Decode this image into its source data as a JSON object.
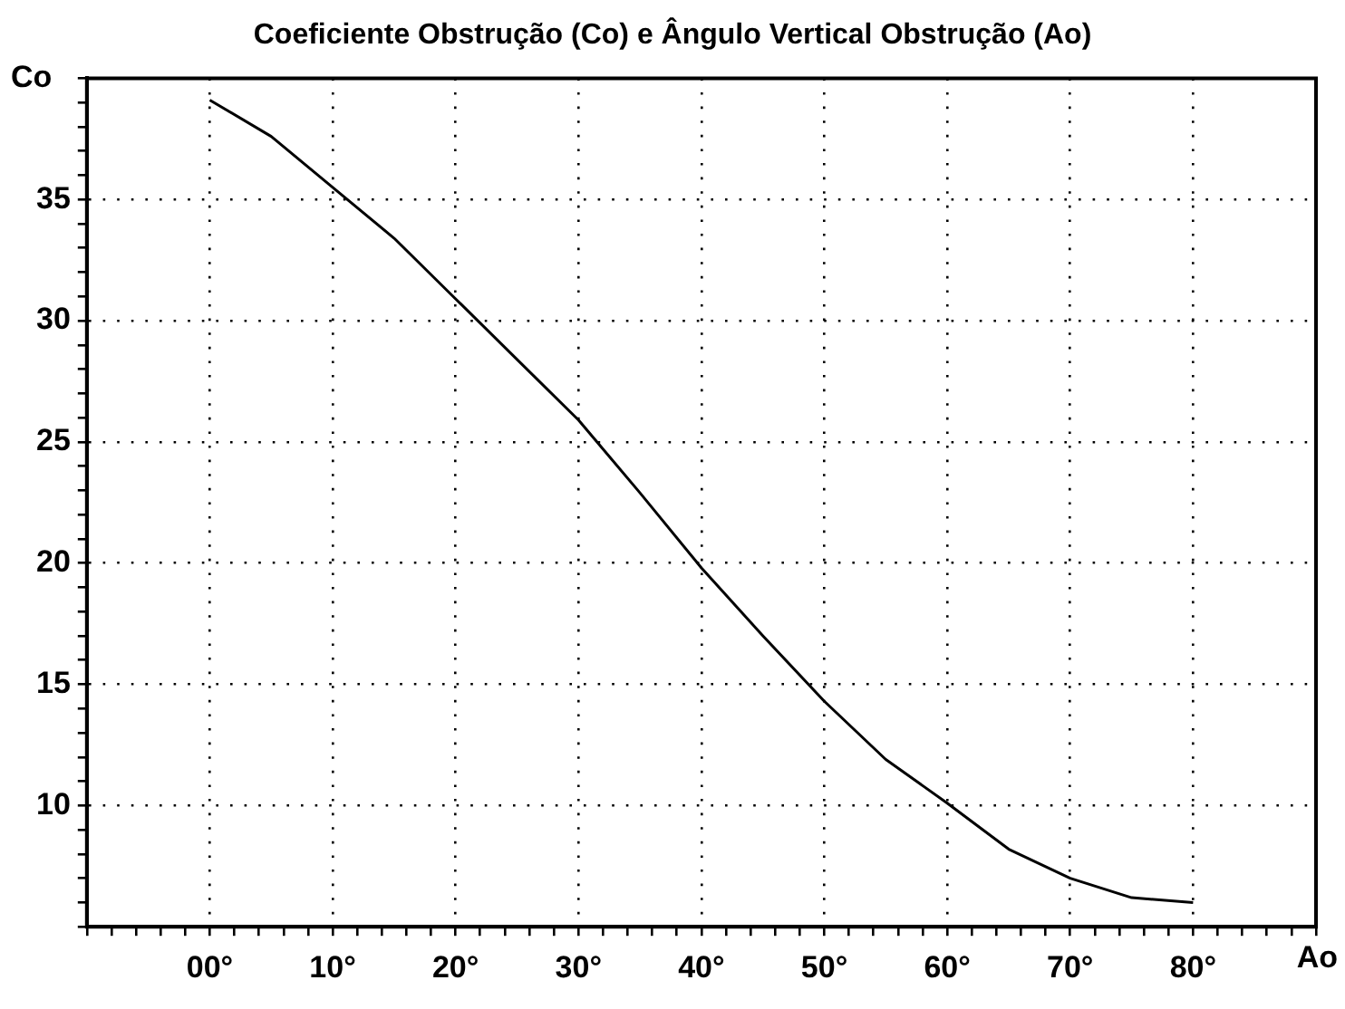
{
  "chart_data": {
    "type": "line",
    "title": "Coeficiente Obstrução (Co) e Ângulo Vertical Obstrução (Ao)",
    "xlabel": "Ao",
    "ylabel": "Co",
    "x": [
      0,
      5,
      10,
      15,
      20,
      25,
      30,
      35,
      40,
      45,
      50,
      55,
      60,
      65,
      70,
      75,
      80
    ],
    "series": [
      {
        "color": "#000000",
        "values": [
          39.1,
          37.6,
          35.5,
          33.4,
          30.9,
          28.4,
          25.9,
          22.9,
          19.8,
          17.0,
          14.3,
          11.9,
          10.1,
          8.2,
          7.0,
          6.2,
          6.0
        ]
      }
    ],
    "xlim": [
      -10,
      90
    ],
    "xticks": [
      {
        "value": -10,
        "label": null
      },
      {
        "value": -8,
        "label": null
      },
      {
        "value": -6,
        "label": null
      },
      {
        "value": -4,
        "label": null
      },
      {
        "value": -2,
        "label": null
      },
      {
        "value": 0,
        "label": "00°"
      },
      {
        "value": 2,
        "label": null
      },
      {
        "value": 4,
        "label": null
      },
      {
        "value": 6,
        "label": null
      },
      {
        "value": 8,
        "label": null
      },
      {
        "value": 10,
        "label": "10°"
      },
      {
        "value": 12,
        "label": null
      },
      {
        "value": 14,
        "label": null
      },
      {
        "value": 16,
        "label": null
      },
      {
        "value": 18,
        "label": null
      },
      {
        "value": 20,
        "label": "20°"
      },
      {
        "value": 22,
        "label": null
      },
      {
        "value": 24,
        "label": null
      },
      {
        "value": 26,
        "label": null
      },
      {
        "value": 28,
        "label": null
      },
      {
        "value": 30,
        "label": "30°"
      },
      {
        "value": 32,
        "label": null
      },
      {
        "value": 34,
        "label": null
      },
      {
        "value": 36,
        "label": null
      },
      {
        "value": 38,
        "label": null
      },
      {
        "value": 40,
        "label": "40°"
      },
      {
        "value": 42,
        "label": null
      },
      {
        "value": 44,
        "label": null
      },
      {
        "value": 46,
        "label": null
      },
      {
        "value": 48,
        "label": null
      },
      {
        "value": 50,
        "label": "50°"
      },
      {
        "value": 52,
        "label": null
      },
      {
        "value": 54,
        "label": null
      },
      {
        "value": 56,
        "label": null
      },
      {
        "value": 58,
        "label": null
      },
      {
        "value": 60,
        "label": "60°"
      },
      {
        "value": 62,
        "label": null
      },
      {
        "value": 64,
        "label": null
      },
      {
        "value": 66,
        "label": null
      },
      {
        "value": 68,
        "label": null
      },
      {
        "value": 70,
        "label": "70°"
      },
      {
        "value": 72,
        "label": null
      },
      {
        "value": 74,
        "label": null
      },
      {
        "value": 76,
        "label": null
      },
      {
        "value": 78,
        "label": null
      },
      {
        "value": 80,
        "label": "80°"
      },
      {
        "value": 82,
        "label": null
      },
      {
        "value": 84,
        "label": null
      },
      {
        "value": 86,
        "label": null
      },
      {
        "value": 88,
        "label": null
      },
      {
        "value": 90,
        "label": null
      }
    ],
    "ylim": [
      5,
      40
    ],
    "yticks": [
      {
        "value": 5,
        "label": null
      },
      {
        "value": 6,
        "label": null
      },
      {
        "value": 7,
        "label": null
      },
      {
        "value": 8,
        "label": null
      },
      {
        "value": 9,
        "label": null
      },
      10,
      {
        "value": 11,
        "label": null
      },
      {
        "value": 12,
        "label": null
      },
      {
        "value": 13,
        "label": null
      },
      {
        "value": 14,
        "label": null
      },
      15,
      {
        "value": 16,
        "label": null
      },
      {
        "value": 17,
        "label": null
      },
      {
        "value": 18,
        "label": null
      },
      {
        "value": 19,
        "label": null
      },
      20,
      {
        "value": 21,
        "label": null
      },
      {
        "value": 22,
        "label": null
      },
      {
        "value": 23,
        "label": null
      },
      {
        "value": 24,
        "label": null
      },
      25,
      {
        "value": 26,
        "label": null
      },
      {
        "value": 27,
        "label": null
      },
      {
        "value": 28,
        "label": null
      },
      {
        "value": 29,
        "label": null
      },
      30,
      {
        "value": 31,
        "label": null
      },
      {
        "value": 32,
        "label": null
      },
      {
        "value": 33,
        "label": null
      },
      {
        "value": 34,
        "label": null
      },
      35,
      {
        "value": 36,
        "label": null
      },
      {
        "value": 37,
        "label": null
      },
      {
        "value": 38,
        "label": null
      },
      {
        "value": 39,
        "label": null
      },
      {
        "value": 40,
        "label": null
      }
    ],
    "grid": true,
    "line_style": "solid"
  }
}
